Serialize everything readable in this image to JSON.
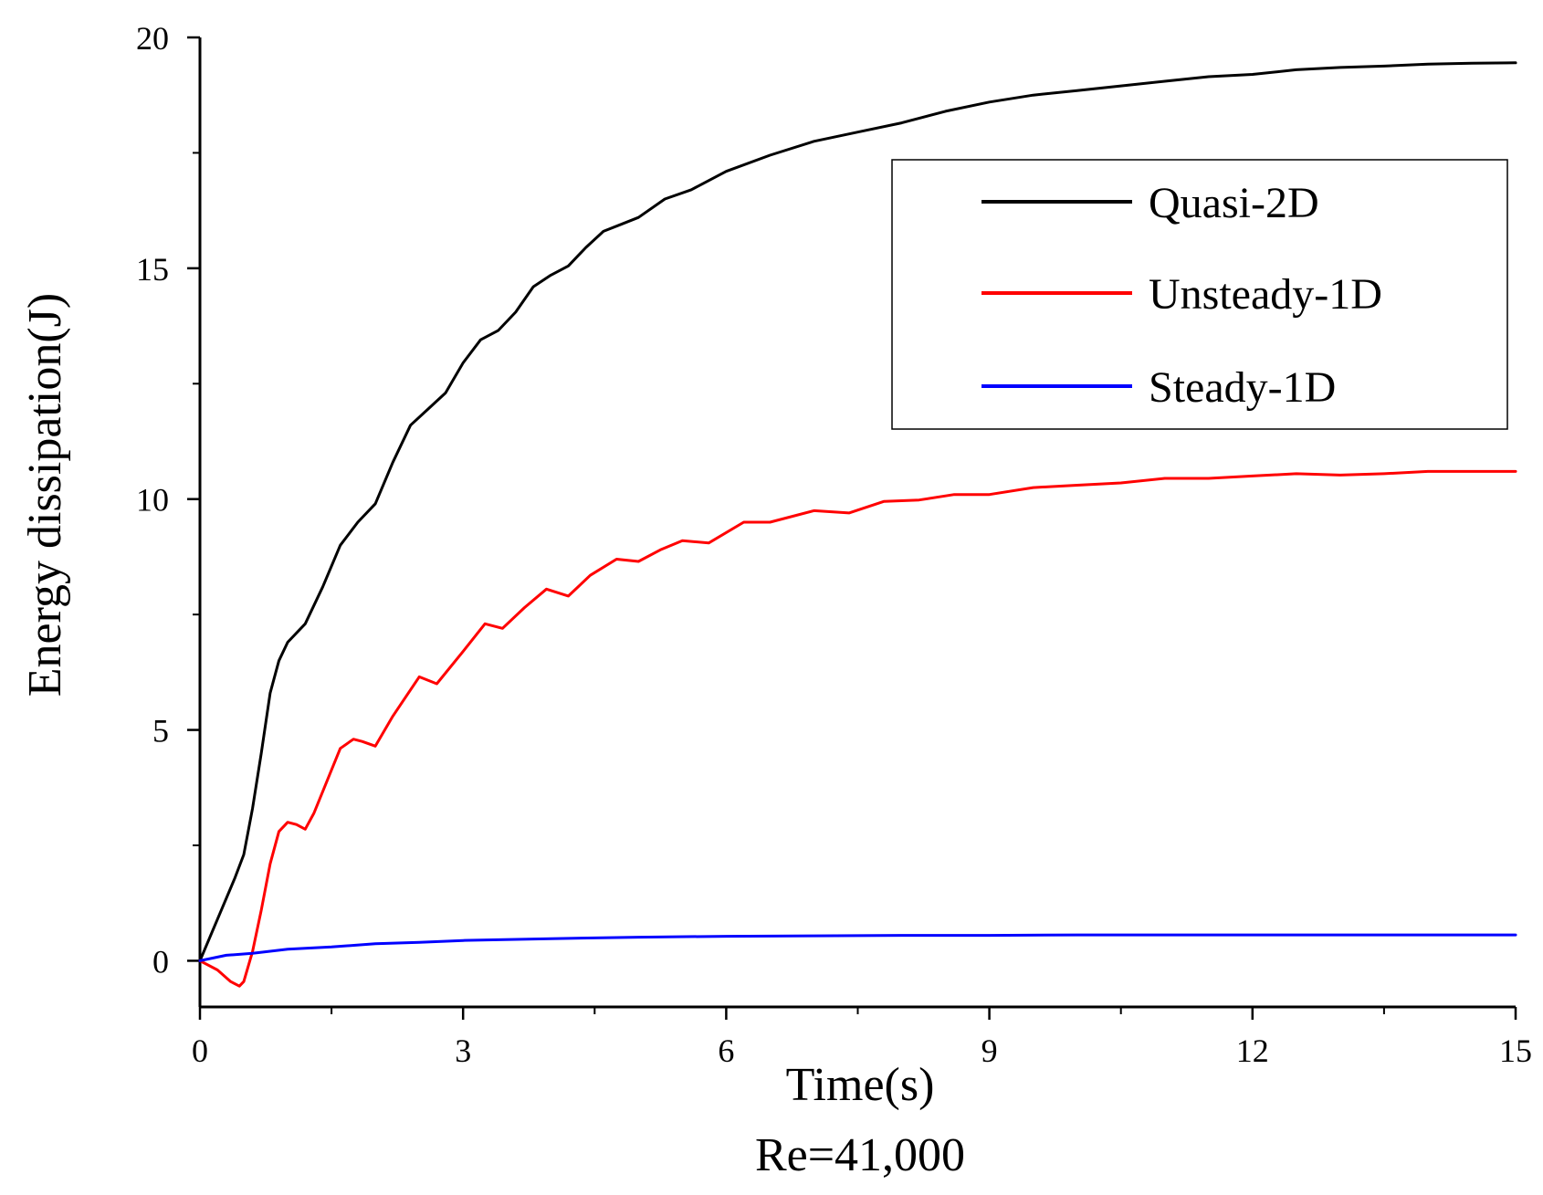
{
  "chart_data": {
    "type": "line",
    "title": "",
    "xlabel": "Time(s)",
    "ylabel": "Energy dissipation(J)",
    "caption": "Re=41,000",
    "xlim": [
      0,
      15
    ],
    "ylim": [
      -1,
      20
    ],
    "xticks": [
      0,
      3,
      6,
      9,
      12,
      15
    ],
    "yticks": [
      0,
      5,
      10,
      15,
      20
    ],
    "xtick_labels": [
      "0",
      "3",
      "6",
      "9",
      "12",
      "15"
    ],
    "ytick_labels": [
      "0",
      "5",
      "10",
      "15",
      "20"
    ],
    "grid": false,
    "legend_position": "top-right",
    "series": [
      {
        "name": "Quasi-2D",
        "color": "#000000",
        "x": [
          0,
          0.2,
          0.4,
          0.5,
          0.6,
          0.7,
          0.8,
          0.9,
          1.0,
          1.2,
          1.4,
          1.6,
          1.8,
          2.0,
          2.2,
          2.4,
          2.6,
          2.8,
          3.0,
          3.2,
          3.4,
          3.6,
          3.8,
          4.0,
          4.2,
          4.4,
          4.6,
          4.8,
          5.0,
          5.3,
          5.6,
          6.0,
          6.5,
          7.0,
          7.5,
          8.0,
          8.5,
          9.0,
          9.5,
          10.0,
          10.5,
          11.0,
          11.5,
          12.0,
          12.5,
          13.0,
          13.5,
          14.0,
          14.5,
          15.0
        ],
        "y": [
          0,
          0.9,
          1.8,
          2.3,
          3.3,
          4.5,
          5.8,
          6.5,
          6.9,
          7.3,
          8.1,
          9.0,
          9.5,
          9.9,
          10.8,
          11.6,
          11.95,
          12.3,
          12.95,
          13.45,
          13.65,
          14.05,
          14.6,
          14.85,
          15.05,
          15.45,
          15.8,
          15.95,
          16.1,
          16.5,
          16.7,
          17.1,
          17.45,
          17.75,
          17.95,
          18.15,
          18.4,
          18.6,
          18.75,
          18.85,
          18.95,
          19.05,
          19.15,
          19.2,
          19.3,
          19.35,
          19.38,
          19.42,
          19.44,
          19.45
        ]
      },
      {
        "name": "Unsteady-1D",
        "color": "#ff0000",
        "x": [
          0,
          0.2,
          0.35,
          0.45,
          0.5,
          0.6,
          0.7,
          0.8,
          0.9,
          1.0,
          1.1,
          1.2,
          1.3,
          1.45,
          1.6,
          1.75,
          1.85,
          2.0,
          2.2,
          2.5,
          2.7,
          3.0,
          3.25,
          3.45,
          3.7,
          3.95,
          4.2,
          4.45,
          4.75,
          5.0,
          5.25,
          5.5,
          5.8,
          6.2,
          6.5,
          7.0,
          7.4,
          7.8,
          8.2,
          8.6,
          9.0,
          9.5,
          10.0,
          10.5,
          11.0,
          11.5,
          12.0,
          12.5,
          13.0,
          13.5,
          14.0,
          14.5,
          15.0
        ],
        "y": [
          0,
          -0.2,
          -0.45,
          -0.55,
          -0.45,
          0.2,
          1.1,
          2.1,
          2.8,
          3.0,
          2.95,
          2.85,
          3.2,
          3.9,
          4.6,
          4.8,
          4.75,
          4.65,
          5.3,
          6.15,
          6.0,
          6.7,
          7.3,
          7.2,
          7.65,
          8.05,
          7.9,
          8.35,
          8.7,
          8.65,
          8.9,
          9.1,
          9.05,
          9.5,
          9.5,
          9.75,
          9.7,
          9.95,
          9.98,
          10.1,
          10.1,
          10.25,
          10.3,
          10.35,
          10.45,
          10.45,
          10.5,
          10.55,
          10.52,
          10.55,
          10.6,
          10.6,
          10.6
        ]
      },
      {
        "name": "Steady-1D",
        "color": "#0000ff",
        "x": [
          0,
          0.3,
          0.6,
          1.0,
          1.5,
          2.0,
          2.5,
          3.0,
          4.0,
          5.0,
          6.0,
          7.0,
          8.0,
          9.0,
          10.0,
          11.0,
          12.0,
          13.0,
          14.0,
          15.0
        ],
        "y": [
          0,
          0.12,
          0.16,
          0.25,
          0.3,
          0.37,
          0.4,
          0.44,
          0.48,
          0.51,
          0.53,
          0.54,
          0.55,
          0.55,
          0.56,
          0.56,
          0.56,
          0.56,
          0.56,
          0.56
        ]
      }
    ]
  }
}
